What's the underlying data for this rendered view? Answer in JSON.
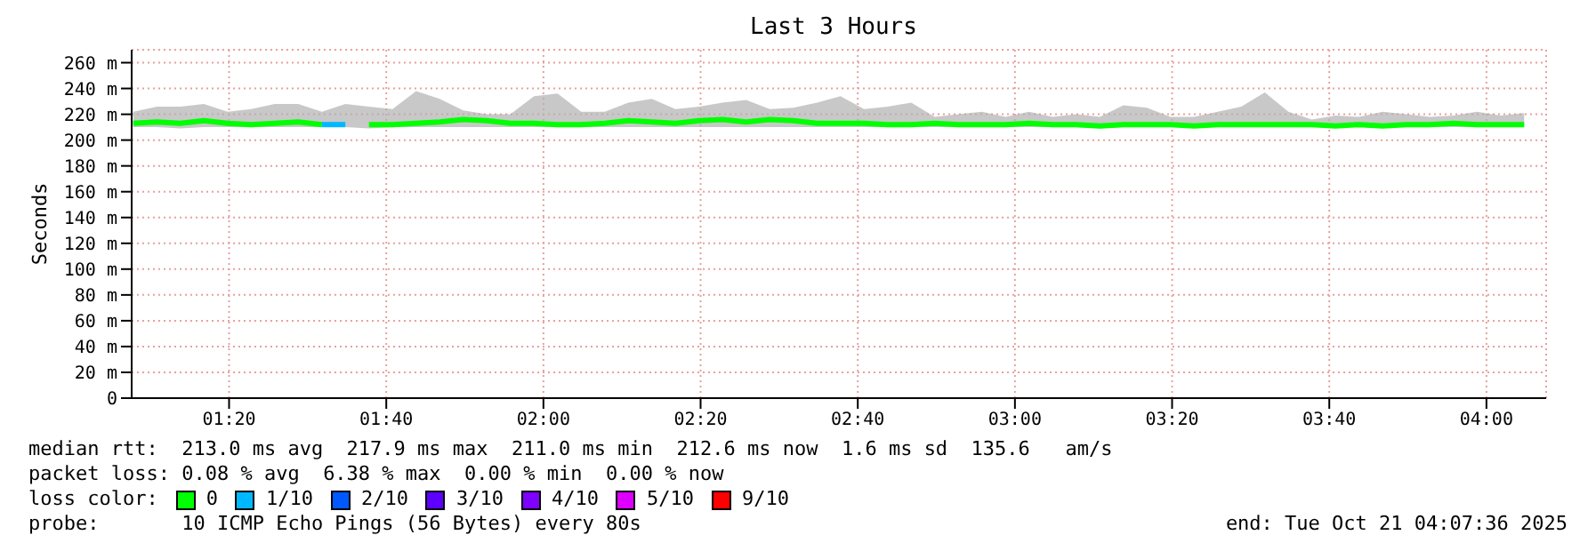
{
  "chart_data": {
    "type": "line",
    "title": "Last 3 Hours",
    "ylabel": "Seconds",
    "x": [
      1.13,
      1.18,
      1.23,
      1.28,
      1.33,
      1.38,
      1.43,
      1.48,
      1.53,
      1.58,
      1.63,
      1.68,
      1.73,
      1.78,
      1.83,
      1.88,
      1.93,
      1.98,
      2.03,
      2.08,
      2.13,
      2.18,
      2.23,
      2.28,
      2.33,
      2.38,
      2.43,
      2.48,
      2.53,
      2.58,
      2.63,
      2.68,
      2.73,
      2.78,
      2.83,
      2.88,
      2.93,
      2.98,
      3.03,
      3.08,
      3.13,
      3.18,
      3.23,
      3.28,
      3.33,
      3.38,
      3.43,
      3.48,
      3.53,
      3.58,
      3.63,
      3.68,
      3.73,
      3.78,
      3.83,
      3.88,
      3.93,
      3.98,
      4.03,
      4.08
    ],
    "series": [
      {
        "name": "0",
        "color": "#00ff00",
        "values": [
          213,
          214,
          213,
          215,
          213,
          212,
          213,
          214,
          212,
          null,
          212,
          212,
          213,
          214,
          216,
          215,
          213,
          213,
          212,
          212,
          213,
          215,
          214,
          213,
          215,
          216,
          214,
          216,
          215,
          213,
          213,
          213,
          212,
          212,
          213,
          212,
          212,
          212,
          213,
          212,
          212,
          211,
          212,
          212,
          212,
          211,
          212,
          212,
          212,
          212,
          212,
          211,
          212,
          211,
          212,
          212,
          213,
          212,
          212,
          212
        ],
        "lower": [
          210,
          210,
          209,
          210,
          210,
          210,
          210,
          210,
          210,
          210,
          209,
          210,
          210,
          210,
          210,
          210,
          210,
          210,
          210,
          210,
          210,
          210,
          210,
          210,
          210,
          210,
          210,
          210,
          210,
          210,
          210,
          210,
          210,
          210,
          210,
          210,
          210,
          210,
          210,
          210,
          210,
          209,
          210,
          210,
          210,
          210,
          210,
          210,
          210,
          210,
          210,
          210,
          210,
          210,
          210,
          210,
          210,
          210,
          210,
          210
        ],
        "upper": [
          222,
          226,
          226,
          228,
          222,
          224,
          228,
          228,
          222,
          228,
          226,
          224,
          238,
          232,
          223,
          220,
          220,
          234,
          236,
          222,
          222,
          229,
          232,
          224,
          226,
          229,
          231,
          224,
          225,
          229,
          234,
          224,
          226,
          229,
          218,
          220,
          222,
          218,
          222,
          218,
          220,
          218,
          227,
          225,
          218,
          218,
          222,
          226,
          237,
          222,
          216,
          219,
          218,
          222,
          220,
          218,
          219,
          222,
          219,
          221
        ]
      },
      {
        "name": "1/10",
        "color": "#00b8ff",
        "values": [
          null,
          null,
          null,
          null,
          null,
          null,
          null,
          null,
          212,
          212,
          null,
          null,
          null,
          null,
          null,
          null,
          null,
          null,
          null,
          null,
          null,
          null,
          null,
          null,
          null,
          null,
          null,
          null,
          null,
          null,
          null,
          null,
          null,
          null,
          null,
          null,
          null,
          null,
          null,
          null,
          null,
          null,
          null,
          null,
          null,
          null,
          null,
          null,
          null,
          null,
          null,
          null,
          null,
          null,
          null,
          null,
          null,
          null,
          null,
          null
        ]
      },
      {
        "name": "2/10",
        "color": "#0059ff",
        "values": [
          null,
          null,
          null,
          null,
          null,
          null,
          null,
          null,
          null,
          null,
          null,
          null,
          null,
          null,
          null,
          null,
          null,
          null,
          null,
          null,
          null,
          null,
          null,
          null,
          null,
          null,
          null,
          null,
          null,
          null,
          null,
          null,
          null,
          null,
          null,
          null,
          null,
          null,
          null,
          null,
          null,
          null,
          null,
          null,
          null,
          null,
          null,
          null,
          null,
          null,
          null,
          null,
          null,
          null,
          null,
          null,
          null,
          null,
          null,
          null
        ]
      },
      {
        "name": "3/10",
        "color": "#5e00ff",
        "values": [
          null,
          null,
          null,
          null,
          null,
          null,
          null,
          null,
          null,
          null,
          null,
          null,
          null,
          null,
          null,
          null,
          null,
          null,
          null,
          null,
          null,
          null,
          null,
          null,
          null,
          null,
          null,
          null,
          null,
          null,
          null,
          null,
          null,
          null,
          null,
          null,
          null,
          null,
          null,
          null,
          null,
          null,
          null,
          null,
          null,
          null,
          null,
          null,
          null,
          null,
          null,
          null,
          null,
          null,
          null,
          null,
          null,
          null,
          null,
          null
        ]
      },
      {
        "name": "4/10",
        "color": "#7e00ff",
        "values": [
          null,
          null,
          null,
          null,
          null,
          null,
          null,
          null,
          null,
          null,
          null,
          null,
          null,
          null,
          null,
          null,
          null,
          null,
          null,
          null,
          null,
          null,
          null,
          null,
          null,
          null,
          null,
          null,
          null,
          null,
          null,
          null,
          null,
          null,
          null,
          null,
          null,
          null,
          null,
          null,
          null,
          null,
          null,
          null,
          null,
          null,
          null,
          null,
          null,
          null,
          null,
          null,
          null,
          null,
          null,
          null,
          null,
          null,
          null,
          null
        ]
      },
      {
        "name": "5/10",
        "color": "#dd00ff",
        "values": [
          null,
          null,
          null,
          null,
          null,
          null,
          null,
          null,
          null,
          null,
          null,
          null,
          null,
          null,
          null,
          null,
          null,
          null,
          null,
          null,
          null,
          null,
          null,
          null,
          null,
          null,
          null,
          null,
          null,
          null,
          null,
          null,
          null,
          null,
          null,
          null,
          null,
          null,
          null,
          null,
          null,
          null,
          null,
          null,
          null,
          null,
          null,
          null,
          null,
          null,
          null,
          null,
          null,
          null,
          null,
          null,
          null,
          null,
          null,
          null
        ]
      },
      {
        "name": "9/10",
        "color": "#ff0000",
        "values": [
          null,
          null,
          null,
          null,
          null,
          null,
          null,
          null,
          null,
          null,
          null,
          null,
          null,
          null,
          null,
          null,
          null,
          null,
          null,
          null,
          null,
          null,
          null,
          null,
          null,
          null,
          null,
          null,
          null,
          null,
          null,
          null,
          null,
          null,
          null,
          null,
          null,
          null,
          null,
          null,
          null,
          null,
          null,
          null,
          null,
          null,
          null,
          null,
          null,
          null,
          null,
          null,
          null,
          null,
          null,
          null,
          null,
          null,
          null,
          null
        ]
      }
    ],
    "legend_title": "loss color:",
    "legend": "bottom",
    "xlim": [
      1.1267,
      4.1267
    ],
    "xticks": [
      {
        "value": 1.3333,
        "label": "01:20"
      },
      {
        "value": 1.6667,
        "label": "01:40"
      },
      {
        "value": 2,
        "label": "02:00"
      },
      {
        "value": 2.3333,
        "label": "02:20"
      },
      {
        "value": 2.6667,
        "label": "02:40"
      },
      {
        "value": 3,
        "label": "03:00"
      },
      {
        "value": 3.3333,
        "label": "03:20"
      },
      {
        "value": 3.6667,
        "label": "03:40"
      },
      {
        "value": 4,
        "label": "04:00"
      }
    ],
    "ylim": [
      0,
      270
    ],
    "yticks": [
      0,
      {
        "value": 20,
        "label": "20 m"
      },
      {
        "value": 40,
        "label": "40 m"
      },
      {
        "value": 60,
        "label": "60 m"
      },
      {
        "value": 80,
        "label": "80 m"
      },
      {
        "value": 100,
        "label": "100 m"
      },
      {
        "value": 120,
        "label": "120 m"
      },
      {
        "value": 140,
        "label": "140 m"
      },
      {
        "value": 160,
        "label": "160 m"
      },
      {
        "value": 180,
        "label": "180 m"
      },
      {
        "value": 200,
        "label": "200 m"
      },
      {
        "value": 220,
        "label": "220 m"
      },
      {
        "value": 240,
        "label": "240 m"
      },
      {
        "value": 260,
        "label": "260 m"
      }
    ],
    "grid": true,
    "annotations": [
      "median rtt:  213.0 ms avg  217.9 ms max  211.0 ms min  212.6 ms now  1.6 ms sd  135.6   am/s",
      "packet loss: 0.08 % avg  6.38 % max  0.00 % min  0.00 % now",
      "probe:       10 ICMP Echo Pings (56 Bytes) every 80s",
      "end: Tue Oct 21 04:07:36 2025"
    ]
  }
}
